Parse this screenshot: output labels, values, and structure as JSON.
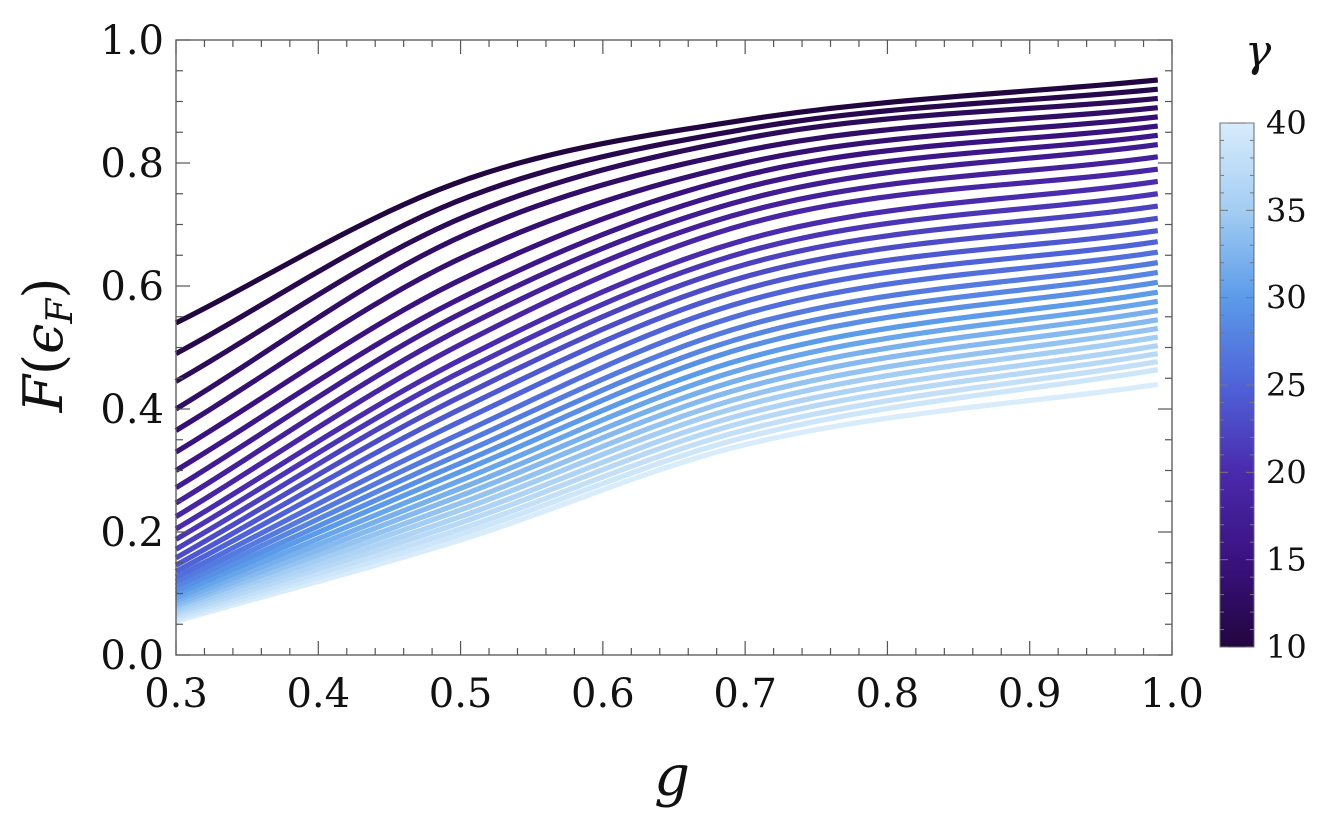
{
  "chart_data": {
    "type": "line",
    "xlabel": "g",
    "ylabel": "F(ϵ_F)",
    "xlim": [
      0.3,
      1.0
    ],
    "ylim": [
      0.0,
      1.0
    ],
    "x_ticks": [
      "0.3",
      "0.4",
      "0.5",
      "0.6",
      "0.7",
      "0.8",
      "0.9",
      "1.0"
    ],
    "y_ticks": [
      "0.0",
      "0.2",
      "0.4",
      "0.6",
      "0.8",
      "1.0"
    ],
    "grid": false,
    "x_range_plotted": [
      0.3,
      0.99
    ],
    "colorbar": {
      "label": "γ",
      "min": 10,
      "max": 40,
      "ticks": [
        "10",
        "15",
        "20",
        "25",
        "30",
        "35",
        "40"
      ],
      "colors": [
        "#22063f",
        "#3a1280",
        "#4a2aad",
        "#4f63d9",
        "#5b9be9",
        "#a3cdf3",
        "#d8ecfb"
      ]
    },
    "series_parameter": "γ",
    "series": [
      {
        "gamma": 10,
        "x": [
          0.3,
          0.5,
          0.7,
          0.99
        ],
        "y": [
          0.54,
          0.77,
          0.87,
          0.935
        ]
      },
      {
        "gamma": 11,
        "x": [
          0.3,
          0.5,
          0.7,
          0.99
        ],
        "y": [
          0.49,
          0.74,
          0.855,
          0.92
        ]
      },
      {
        "gamma": 12,
        "x": [
          0.3,
          0.5,
          0.7,
          0.99
        ],
        "y": [
          0.445,
          0.71,
          0.84,
          0.905
        ]
      },
      {
        "gamma": 13,
        "x": [
          0.3,
          0.5,
          0.7,
          0.99
        ],
        "y": [
          0.4,
          0.68,
          0.82,
          0.89
        ]
      },
      {
        "gamma": 14,
        "x": [
          0.3,
          0.5,
          0.7,
          0.99
        ],
        "y": [
          0.365,
          0.645,
          0.8,
          0.875
        ]
      },
      {
        "gamma": 15,
        "x": [
          0.3,
          0.5,
          0.7,
          0.99
        ],
        "y": [
          0.33,
          0.61,
          0.78,
          0.86
        ]
      },
      {
        "gamma": 16,
        "x": [
          0.3,
          0.5,
          0.7,
          0.99
        ],
        "y": [
          0.3,
          0.58,
          0.76,
          0.845
        ]
      },
      {
        "gamma": 17,
        "x": [
          0.3,
          0.5,
          0.7,
          0.99
        ],
        "y": [
          0.272,
          0.555,
          0.74,
          0.83
        ]
      },
      {
        "gamma": 18,
        "x": [
          0.3,
          0.5,
          0.7,
          0.99
        ],
        "y": [
          0.247,
          0.53,
          0.72,
          0.81
        ]
      },
      {
        "gamma": 19,
        "x": [
          0.3,
          0.5,
          0.7,
          0.99
        ],
        "y": [
          0.225,
          0.505,
          0.7,
          0.79
        ]
      },
      {
        "gamma": 20,
        "x": [
          0.3,
          0.5,
          0.7,
          0.99
        ],
        "y": [
          0.205,
          0.48,
          0.675,
          0.77
        ]
      },
      {
        "gamma": 21,
        "x": [
          0.3,
          0.5,
          0.7,
          0.99
        ],
        "y": [
          0.188,
          0.46,
          0.655,
          0.75
        ]
      },
      {
        "gamma": 22,
        "x": [
          0.3,
          0.5,
          0.7,
          0.99
        ],
        "y": [
          0.172,
          0.44,
          0.635,
          0.73
        ]
      },
      {
        "gamma": 23,
        "x": [
          0.3,
          0.5,
          0.7,
          0.99
        ],
        "y": [
          0.158,
          0.42,
          0.615,
          0.71
        ]
      },
      {
        "gamma": 24,
        "x": [
          0.3,
          0.5,
          0.7,
          0.99
        ],
        "y": [
          0.146,
          0.4,
          0.595,
          0.69
        ]
      },
      {
        "gamma": 25,
        "x": [
          0.3,
          0.5,
          0.7,
          0.99
        ],
        "y": [
          0.136,
          0.38,
          0.575,
          0.672
        ]
      },
      {
        "gamma": 26,
        "x": [
          0.3,
          0.5,
          0.7,
          0.99
        ],
        "y": [
          0.127,
          0.36,
          0.555,
          0.655
        ]
      },
      {
        "gamma": 27,
        "x": [
          0.3,
          0.5,
          0.7,
          0.99
        ],
        "y": [
          0.119,
          0.343,
          0.535,
          0.638
        ]
      },
      {
        "gamma": 28,
        "x": [
          0.3,
          0.5,
          0.7,
          0.99
        ],
        "y": [
          0.112,
          0.327,
          0.517,
          0.622
        ]
      },
      {
        "gamma": 29,
        "x": [
          0.3,
          0.5,
          0.7,
          0.99
        ],
        "y": [
          0.105,
          0.312,
          0.5,
          0.606
        ]
      },
      {
        "gamma": 30,
        "x": [
          0.3,
          0.5,
          0.7,
          0.99
        ],
        "y": [
          0.099,
          0.298,
          0.482,
          0.59
        ]
      },
      {
        "gamma": 31,
        "x": [
          0.3,
          0.5,
          0.7,
          0.99
        ],
        "y": [
          0.093,
          0.284,
          0.466,
          0.575
        ]
      },
      {
        "gamma": 32,
        "x": [
          0.3,
          0.5,
          0.7,
          0.99
        ],
        "y": [
          0.088,
          0.271,
          0.45,
          0.56
        ]
      },
      {
        "gamma": 33,
        "x": [
          0.3,
          0.5,
          0.7,
          0.99
        ],
        "y": [
          0.083,
          0.259,
          0.435,
          0.545
        ]
      },
      {
        "gamma": 34,
        "x": [
          0.3,
          0.5,
          0.7,
          0.99
        ],
        "y": [
          0.079,
          0.247,
          0.42,
          0.531
        ]
      },
      {
        "gamma": 35,
        "x": [
          0.3,
          0.5,
          0.7,
          0.99
        ],
        "y": [
          0.075,
          0.236,
          0.406,
          0.517
        ]
      },
      {
        "gamma": 36,
        "x": [
          0.3,
          0.5,
          0.7,
          0.99
        ],
        "y": [
          0.071,
          0.225,
          0.392,
          0.503
        ]
      },
      {
        "gamma": 37,
        "x": [
          0.3,
          0.5,
          0.7,
          0.99
        ],
        "y": [
          0.067,
          0.215,
          0.379,
          0.49
        ]
      },
      {
        "gamma": 38,
        "x": [
          0.3,
          0.5,
          0.7,
          0.99
        ],
        "y": [
          0.063,
          0.205,
          0.366,
          0.477
        ]
      },
      {
        "gamma": 39,
        "x": [
          0.3,
          0.5,
          0.7,
          0.99
        ],
        "y": [
          0.059,
          0.196,
          0.354,
          0.464
        ]
      },
      {
        "gamma": 40,
        "x": [
          0.3,
          0.5,
          0.7,
          0.99
        ],
        "y": [
          0.055,
          0.187,
          0.342,
          0.44
        ]
      }
    ]
  }
}
